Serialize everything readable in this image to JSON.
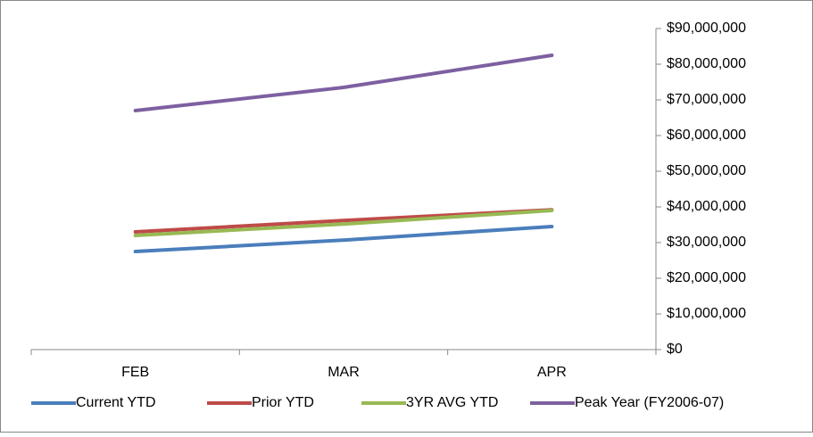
{
  "chart_data": {
    "type": "line",
    "categories": [
      "FEB",
      "MAR",
      "APR"
    ],
    "series": [
      {
        "name": "Current YTD",
        "color": "#4a7ebb",
        "values": [
          27500000,
          30700000,
          34500000
        ]
      },
      {
        "name": "Prior YTD",
        "color": "#be4b48",
        "values": [
          33000000,
          36200000,
          39200000
        ]
      },
      {
        "name": "3YR AVG YTD",
        "color": "#98b954",
        "values": [
          32000000,
          35200000,
          39000000
        ]
      },
      {
        "name": "Peak Year (FY2006-07)",
        "color": "#7d60a0",
        "values": [
          67000000,
          73500000,
          82500000
        ]
      }
    ],
    "ylim": [
      0,
      90000000
    ],
    "yticks": [
      {
        "value": 0,
        "label": "$0"
      },
      {
        "value": 10000000,
        "label": "$10,000,000"
      },
      {
        "value": 20000000,
        "label": "$20,000,000"
      },
      {
        "value": 30000000,
        "label": "$30,000,000"
      },
      {
        "value": 40000000,
        "label": "$40,000,000"
      },
      {
        "value": 50000000,
        "label": "$50,000,000"
      },
      {
        "value": 60000000,
        "label": "$60,000,000"
      },
      {
        "value": 70000000,
        "label": "$70,000,000"
      },
      {
        "value": 80000000,
        "label": "$80,000,000"
      },
      {
        "value": 90000000,
        "label": "$90,000,000"
      }
    ],
    "y_axis_side": "right",
    "grid": false,
    "legend": "bottom"
  }
}
